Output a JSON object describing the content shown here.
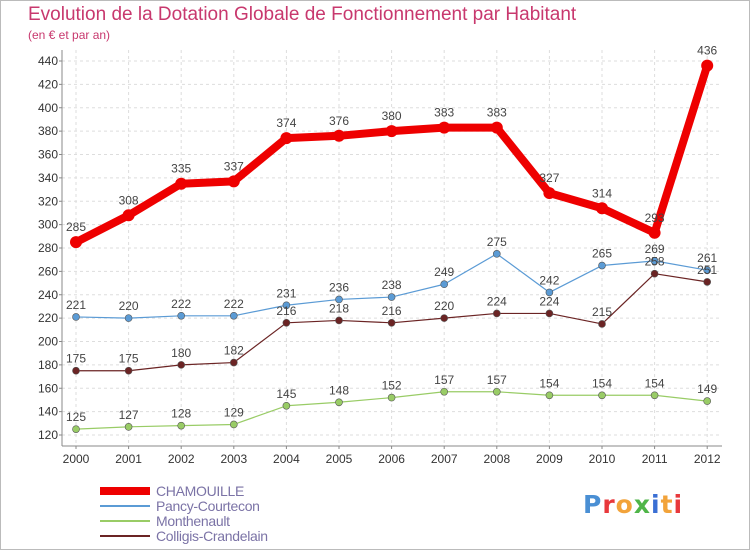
{
  "header": {
    "title": "Evolution de la Dotation Globale de Fonctionnement par Habitant",
    "subtitle": "(en € et par an)"
  },
  "logo": {
    "text": "Proxiti",
    "colors": [
      "#4a8fd4",
      "#e8383c",
      "#f2a33a",
      "#4fb548",
      "#3a6fd4",
      "#f2a33a",
      "#e8383c"
    ]
  },
  "chart_data": {
    "type": "line",
    "x": [
      "2000",
      "2001",
      "2002",
      "2003",
      "2004",
      "2005",
      "2006",
      "2007",
      "2008",
      "2009",
      "2010",
      "2011",
      "2012"
    ],
    "ylim": [
      120,
      450
    ],
    "yticks": [
      120,
      140,
      160,
      180,
      200,
      220,
      240,
      260,
      280,
      300,
      320,
      340,
      360,
      380,
      400,
      420,
      440
    ],
    "grid": true,
    "legend_position": "bottom-left",
    "series": [
      {
        "name": "CHAMOUILLE",
        "color": "#ee0000",
        "values": [
          285,
          308,
          335,
          337,
          374,
          376,
          380,
          383,
          383,
          327,
          314,
          293,
          436
        ],
        "labels": [
          "285",
          "308",
          "335",
          "337",
          "374",
          "376",
          "380",
          "383",
          "383",
          "327",
          "314",
          "293",
          "436"
        ]
      },
      {
        "name": "Pancy-Courtecon",
        "color": "#5b9bd5",
        "values": [
          221,
          220,
          222,
          222,
          231,
          236,
          238,
          249,
          275,
          242,
          265,
          269,
          261
        ],
        "labels": [
          "221",
          "220",
          "222",
          "222",
          "231",
          "236",
          "238",
          "249",
          "275",
          "242",
          "265",
          "269",
          "261"
        ]
      },
      {
        "name": "Monthenault",
        "color": "#99cc66",
        "values": [
          125,
          127,
          128,
          129,
          145,
          148,
          152,
          157,
          157,
          154,
          154,
          154,
          149
        ],
        "labels": [
          "125",
          "127",
          "128",
          "129",
          "145",
          "148",
          "152",
          "157",
          "157",
          "154",
          "154",
          "154",
          "149"
        ]
      },
      {
        "name": "Colligis-Crandelain",
        "color": "#6b2424",
        "values": [
          175,
          175,
          180,
          182,
          216,
          218,
          216,
          220,
          224,
          224,
          215,
          258,
          251
        ],
        "labels": [
          "175",
          "175",
          "180",
          "182",
          "216",
          "218",
          "216",
          "220",
          "224",
          "224",
          "215",
          "258",
          "251"
        ]
      }
    ]
  }
}
